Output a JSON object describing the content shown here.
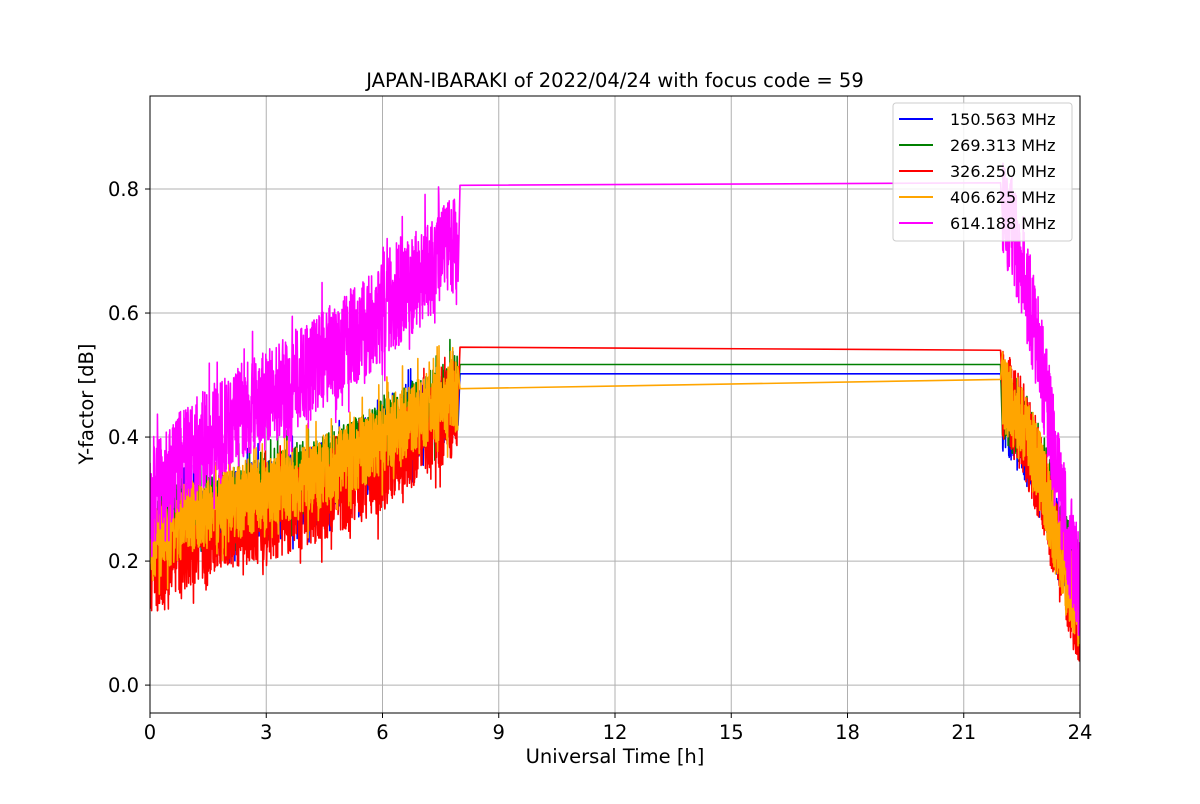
{
  "chart_data": {
    "type": "line",
    "title": "JAPAN-IBARAKI of 2022/04/24 with focus code = 59",
    "xlabel": "Universal Time [h]",
    "ylabel": "Y-factor [dB]",
    "xlim": [
      0,
      24
    ],
    "ylim": [
      -0.045,
      0.95
    ],
    "xticks": [
      0,
      3,
      6,
      9,
      12,
      15,
      18,
      21,
      24
    ],
    "xtick_labels": [
      "0",
      "3",
      "6",
      "9",
      "12",
      "15",
      "18",
      "21",
      "24"
    ],
    "yticks": [
      0.0,
      0.2,
      0.4,
      0.6,
      0.8
    ],
    "ytick_labels": [
      "0.0",
      "0.2",
      "0.4",
      "0.6",
      "0.8"
    ],
    "grid": true,
    "legend_position": "top-right",
    "series": [
      {
        "name": "150.563 MHz",
        "color": "#0000ff",
        "x": [
          0,
          1,
          2,
          3,
          4,
          5,
          6,
          7,
          7.95,
          8.0,
          21.95,
          22.0,
          22.5,
          23.0,
          23.5,
          24.0
        ],
        "y": [
          0.24,
          0.27,
          0.28,
          0.3,
          0.32,
          0.35,
          0.39,
          0.43,
          0.46,
          0.502,
          0.502,
          0.44,
          0.4,
          0.33,
          0.22,
          0.15
        ],
        "noise": 0.06
      },
      {
        "name": "269.313 MHz",
        "color": "#008000",
        "x": [
          0,
          1,
          2,
          3,
          4,
          5,
          6,
          7,
          7.95,
          8.0,
          21.95,
          22.0,
          22.5,
          23.0,
          23.5,
          24.0
        ],
        "y": [
          0.25,
          0.27,
          0.29,
          0.31,
          0.33,
          0.36,
          0.4,
          0.44,
          0.47,
          0.517,
          0.517,
          0.46,
          0.42,
          0.35,
          0.24,
          0.17
        ],
        "noise": 0.06
      },
      {
        "name": "326.250 MHz",
        "color": "#ff0000",
        "x": [
          0,
          1,
          2,
          3,
          4,
          5,
          6,
          7,
          7.95,
          8.0,
          21.95,
          22.0,
          22.5,
          23.0,
          23.5,
          24.0
        ],
        "y": [
          0.18,
          0.23,
          0.25,
          0.27,
          0.29,
          0.32,
          0.35,
          0.4,
          0.44,
          0.545,
          0.54,
          0.47,
          0.42,
          0.33,
          0.2,
          0.1
        ],
        "noise": 0.07
      },
      {
        "name": "406.625 MHz",
        "color": "#ffa500",
        "x": [
          0,
          1,
          2,
          3,
          4,
          5,
          6,
          7,
          7.95,
          8.0,
          21.95,
          22.0,
          22.5,
          23.0,
          23.5,
          24.0
        ],
        "y": [
          0.22,
          0.27,
          0.29,
          0.31,
          0.33,
          0.36,
          0.4,
          0.44,
          0.47,
          0.478,
          0.493,
          0.48,
          0.42,
          0.34,
          0.2,
          0.12
        ],
        "noise": 0.06
      },
      {
        "name": "614.188 MHz",
        "color": "#ff00ff",
        "x": [
          0,
          1,
          2,
          3,
          4,
          5,
          6,
          7,
          7.95,
          8.0,
          21.95,
          22.0,
          22.5,
          23.0,
          23.5,
          24.0
        ],
        "y": [
          0.3,
          0.38,
          0.42,
          0.46,
          0.5,
          0.55,
          0.6,
          0.66,
          0.72,
          0.806,
          0.81,
          0.78,
          0.68,
          0.52,
          0.3,
          0.15
        ],
        "noise": 0.08
      }
    ]
  }
}
